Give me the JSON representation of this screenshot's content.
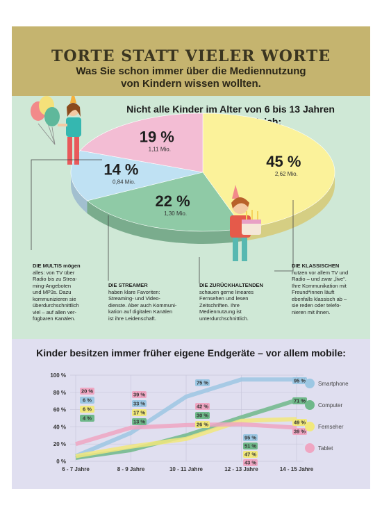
{
  "header": {
    "title": "Torte statt vieler Worte",
    "subtitle_line1": "Was Sie schon immer über die Mediennutzung",
    "subtitle_line2": "von Kindern wissen wollten."
  },
  "pie_section": {
    "title_line1": "Nicht alle Kinder im Alter von 6 bis 13 Jahren",
    "title_line2": "nutzen Medien gleich:",
    "descriptions": [
      {
        "key": "multis",
        "head": "DIE MULTIS mögen",
        "lines": [
          "alles: von TV über",
          "Radio bis zu Strea-",
          "ming-Angeboten",
          "und MP3s. Dazu",
          "kommunizieren sie",
          "überdurchschnittlich",
          "viel – auf allen ver-",
          "fügbaren Kanälen."
        ]
      },
      {
        "key": "streamer",
        "head": "DIE STREAMER",
        "lines": [
          "haben klare Favoriten:",
          "Streaming- und Video-",
          "dienste. Aber auch Kommuni-",
          "kation auf digitalen Kanälen",
          "ist ihre Leidenschaft."
        ]
      },
      {
        "key": "zurueck",
        "head": "DIE ZURÜCKHALTENDEN",
        "lines": [
          "schauen gerne lineares",
          "Fernsehen und lesen",
          "Zeitschriften. Ihre",
          "Mediennutzung ist",
          "unterdurchschnittlich."
        ]
      },
      {
        "key": "klassisch",
        "head": "DIE KLASSISCHEN",
        "lines": [
          "nutzen vor allem TV und",
          "Radio – und zwar „live“.",
          "Ihre Kommunikation mit",
          "Freund*innen läuft",
          "ebenfalls klassisch ab –",
          "sie reden oder telefo-",
          "nieren mit ihnen."
        ]
      }
    ]
  },
  "line_section": {
    "title": "Kinder besitzen immer früher eigene Endgeräte – vor allem mobile:"
  },
  "chart_data": [
    {
      "type": "pie",
      "title": "Nicht alle Kinder im Alter von 6 bis 13 Jahren nutzen Medien gleich:",
      "slices": [
        {
          "name": "Die Klassischen",
          "percent": 45,
          "percent_label": "45 %",
          "count_label": "2,62 Mio.",
          "color": "#fbf29a"
        },
        {
          "name": "Die Zurückhaltenden",
          "percent": 22,
          "percent_label": "22 %",
          "count_label": "1,30 Mio.",
          "color": "#8fcaa6"
        },
        {
          "name": "Die Streamer",
          "percent": 14,
          "percent_label": "14 %",
          "count_label": "0,84 Mio.",
          "color": "#bfe1f3"
        },
        {
          "name": "Die Multis",
          "percent": 19,
          "percent_label": "19 %",
          "count_label": "1,11 Mio.",
          "color": "#f3bdd4"
        }
      ]
    },
    {
      "type": "line",
      "title": "Kinder besitzen immer früher eigene Endgeräte – vor allem mobile:",
      "categories": [
        "6 - 7 Jahre",
        "8 - 9 Jahre",
        "10 - 11 Jahre",
        "12 - 13 Jahre",
        "14 - 15 Jahre"
      ],
      "y_ticks": [
        "0 %",
        "20 %",
        "40 %",
        "60 %",
        "80 %",
        "100 %"
      ],
      "ylim": [
        0,
        100
      ],
      "grid": true,
      "legend_position": "right",
      "series": [
        {
          "name": "Smartphone",
          "color": "#9cc7e3",
          "values": [
            6,
            33,
            75,
            95,
            95
          ]
        },
        {
          "name": "Computer",
          "color": "#6fb88a",
          "values": [
            4,
            13,
            30,
            51,
            71
          ]
        },
        {
          "name": "Fernseher",
          "color": "#f1e87c",
          "values": [
            6,
            17,
            26,
            47,
            49
          ]
        },
        {
          "name": "Tablet",
          "color": "#efa6c2",
          "values": [
            20,
            39,
            42,
            43,
            39
          ]
        }
      ],
      "point_labels": [
        {
          "series": 3,
          "index": 0,
          "text": "20 %"
        },
        {
          "series": 0,
          "index": 0,
          "text": "6 %"
        },
        {
          "series": 2,
          "index": 0,
          "text": "6 %"
        },
        {
          "series": 1,
          "index": 0,
          "text": "4 %"
        },
        {
          "series": 3,
          "index": 1,
          "text": "39 %"
        },
        {
          "series": 0,
          "index": 1,
          "text": "33 %"
        },
        {
          "series": 2,
          "index": 1,
          "text": "17 %"
        },
        {
          "series": 1,
          "index": 1,
          "text": "13 %"
        },
        {
          "series": 0,
          "index": 2,
          "text": "75 %"
        },
        {
          "series": 3,
          "index": 2,
          "text": "42 %"
        },
        {
          "series": 1,
          "index": 2,
          "text": "30 %"
        },
        {
          "series": 2,
          "index": 2,
          "text": "26 %"
        },
        {
          "series": 0,
          "index": 3,
          "text": "95 %"
        },
        {
          "series": 1,
          "index": 3,
          "text": "51 %"
        },
        {
          "series": 2,
          "index": 3,
          "text": "47 %"
        },
        {
          "series": 3,
          "index": 3,
          "text": "43 %"
        },
        {
          "series": 0,
          "index": 4,
          "text": "95 %"
        },
        {
          "series": 1,
          "index": 4,
          "text": "71 %"
        },
        {
          "series": 2,
          "index": 4,
          "text": "49 %"
        },
        {
          "series": 3,
          "index": 4,
          "text": "39 %"
        }
      ]
    }
  ]
}
